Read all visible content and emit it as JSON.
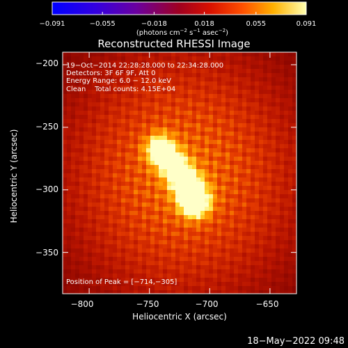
{
  "chart_data": {
    "type": "heatmap",
    "title": "Reconstructed RHESSI Image",
    "xlabel": "Heliocentric X (arcsec)",
    "ylabel": "Heliocentric Y (arcsec)",
    "xlim": [
      -822,
      -628
    ],
    "ylim": [
      -383,
      -190
    ],
    "xticks": [
      -800,
      -750,
      -700,
      -650
    ],
    "yticks": [
      -200,
      -250,
      -300,
      -350
    ],
    "colorbar": {
      "min": -0.091,
      "max": 0.091,
      "ticks": [
        -0.091,
        -0.055,
        -0.018,
        0.018,
        0.055,
        0.091
      ],
      "tick_labels": [
        "−0.091",
        "−0.055",
        "−0.018",
        "0.018",
        "0.055",
        "0.091"
      ],
      "unit_base": "(photons cm",
      "unit_exp1": "−2",
      "unit_mid": " s",
      "unit_exp2": "−1",
      "unit_mid2": " asec",
      "unit_exp3": "−2",
      "unit_end": ")"
    },
    "source": {
      "peak": [
        -714,
        -305
      ],
      "ridge": [
        [
          -741,
          -268
        ],
        [
          -728,
          -283
        ],
        [
          -718,
          -297
        ],
        [
          -712,
          -310
        ]
      ],
      "peak_value": 0.091
    },
    "annotations": [
      "19−Oct−2014 22:28:28.000 to 22:34:28.000",
      "Detectors: 3F 6F 9F, Att 0",
      "Energy Range: 6.0 − 12.0 keV",
      "Clean    Total counts: 4.15E+04"
    ],
    "peak_label": "Position of Peak = [−714,−305]"
  },
  "footer": {
    "timestamp": "18−May−2022 09:48"
  },
  "labels": {
    "xticks": [
      "−800",
      "−750",
      "−700",
      "−650"
    ],
    "yticks": [
      "−200",
      "−250",
      "−300",
      "−350"
    ]
  }
}
